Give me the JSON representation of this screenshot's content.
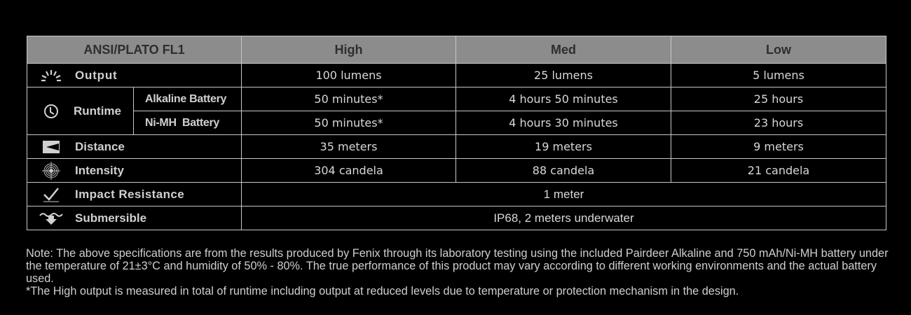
{
  "header": {
    "spec": "ANSI/PLATO FL1",
    "high": "High",
    "med": "Med",
    "low": "Low"
  },
  "rows": {
    "output": {
      "icon": "light-burst-icon",
      "label": "Output",
      "high": "100 lumens",
      "med": "25 lumens",
      "low": "5 lumens"
    },
    "runtime": {
      "icon": "clock-icon",
      "label": "Runtime",
      "alkaline": {
        "label": "Alkaline Battery",
        "high": "50 minutes*",
        "med": "4 hours 50 minutes",
        "low": "25 hours"
      },
      "nimh": {
        "label": "Ni-MH  Battery",
        "high": "50 minutes*",
        "med": "4 hours 30 minutes",
        "low": "23 hours"
      }
    },
    "distance": {
      "icon": "distance-icon",
      "label": "Distance",
      "high": "35 meters",
      "med": "19 meters",
      "low": "9 meters"
    },
    "intensity": {
      "icon": "target-icon",
      "label": "Intensity",
      "high": "304 candela",
      "med": "88 candela",
      "low": "21 candela"
    },
    "impact": {
      "icon": "impact-check-icon",
      "label": "Impact Resistance",
      "value": "1 meter"
    },
    "submersible": {
      "icon": "submersible-icon",
      "label": "Submersible",
      "value": "IP68, 2 meters underwater"
    }
  },
  "notes": {
    "line1": "Note: The above specifications are from the results produced by Fenix through its laboratory testing using the included Pairdeer Alkaline and 750 mAh/Ni-MH battery under the temperature of 21±3°C and humidity of 50% - 80%. The true performance of this product may vary according to different working environments and the actual battery used.",
    "line2": "*The High output is measured in total of runtime including output at reduced levels due to temperature or protection mechanism in the design."
  }
}
